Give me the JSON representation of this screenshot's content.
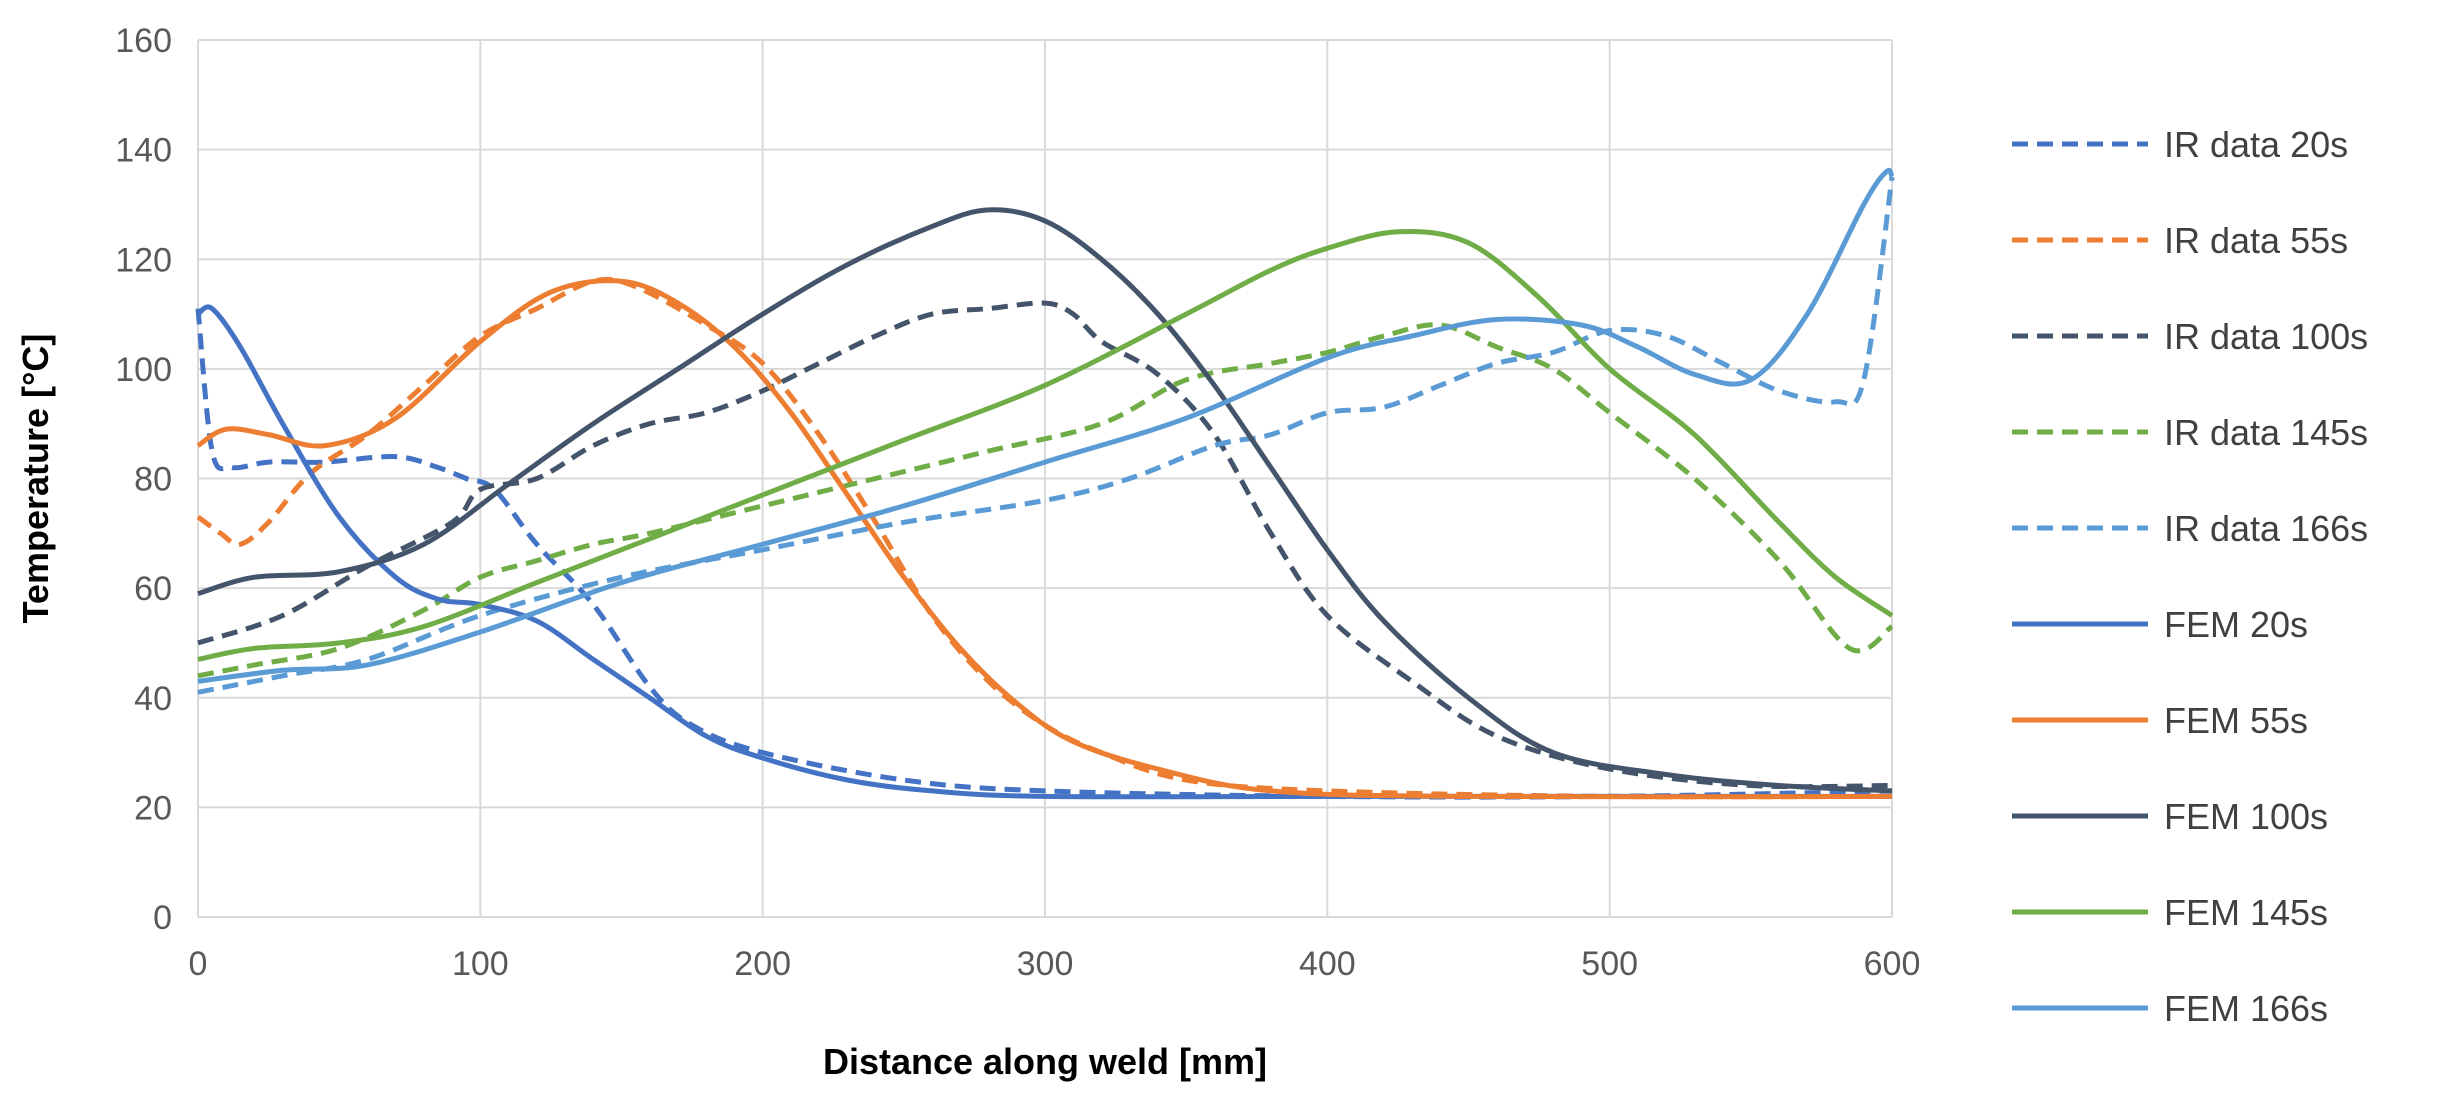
{
  "chart_data": {
    "type": "line",
    "title": "",
    "xlabel": "Distance along weld [mm]",
    "ylabel": "Temperature [°C]",
    "xlim": [
      0,
      600
    ],
    "ylim": [
      0,
      160
    ],
    "xticks": [
      0,
      100,
      200,
      300,
      400,
      500,
      600
    ],
    "yticks": [
      0,
      20,
      40,
      60,
      80,
      100,
      120,
      140,
      160
    ],
    "grid": true,
    "legend_position": "right",
    "series": [
      {
        "name": "IR data 20s",
        "color": "#4472C4",
        "dash": true,
        "x": [
          0,
          5,
          12,
          25,
          45,
          70,
          85,
          95,
          105,
          120,
          140,
          160,
          175,
          200,
          250,
          300,
          400,
          500,
          600
        ],
        "y": [
          111,
          85,
          82,
          83,
          83,
          84,
          82,
          80,
          78,
          68,
          57,
          42,
          35,
          30,
          25,
          23,
          22,
          22,
          23
        ]
      },
      {
        "name": "IR data 55s",
        "color": "#ED7D31",
        "dash": true,
        "x": [
          0,
          8,
          15,
          25,
          40,
          60,
          80,
          100,
          120,
          140,
          155,
          180,
          200,
          220,
          240,
          260,
          280,
          300,
          320,
          350,
          400,
          500,
          600
        ],
        "y": [
          73,
          70,
          68,
          72,
          81,
          88,
          97,
          106,
          111,
          116,
          115,
          108,
          101,
          88,
          72,
          55,
          43,
          35,
          30,
          25,
          23,
          22,
          22
        ]
      },
      {
        "name": "IR data 100s",
        "color": "#44546A",
        "dash": true,
        "x": [
          0,
          30,
          60,
          90,
          100,
          120,
          140,
          160,
          180,
          200,
          220,
          240,
          260,
          280,
          300,
          310,
          320,
          340,
          360,
          380,
          400,
          430,
          460,
          500,
          550,
          600
        ],
        "y": [
          50,
          55,
          64,
          72,
          78,
          80,
          86,
          90,
          92,
          96,
          101,
          106,
          110,
          111,
          112,
          110,
          105,
          99,
          88,
          70,
          55,
          43,
          33,
          27,
          24,
          24
        ]
      },
      {
        "name": "IR data 145s",
        "color": "#70AD47",
        "dash": true,
        "x": [
          0,
          20,
          50,
          80,
          100,
          120,
          140,
          160,
          200,
          240,
          280,
          320,
          350,
          380,
          400,
          420,
          440,
          460,
          480,
          500,
          530,
          560,
          585,
          600
        ],
        "y": [
          44,
          46,
          49,
          56,
          62,
          65,
          68,
          70,
          75,
          80,
          85,
          90,
          98,
          101,
          103,
          106,
          108,
          104,
          100,
          92,
          80,
          65,
          49,
          53
        ]
      },
      {
        "name": "IR data 166s",
        "color": "#5B9BD5",
        "dash": true,
        "x": [
          0,
          30,
          60,
          100,
          150,
          200,
          250,
          300,
          330,
          360,
          380,
          400,
          420,
          440,
          460,
          480,
          500,
          520,
          540,
          560,
          580,
          590,
          600
        ],
        "y": [
          41,
          44,
          47,
          55,
          62,
          67,
          72,
          76,
          80,
          86,
          88,
          92,
          93,
          97,
          101,
          103,
          107,
          106,
          101,
          96,
          94,
          98,
          135
        ]
      },
      {
        "name": "FEM 20s",
        "color": "#4472C4",
        "dash": false,
        "x": [
          0,
          5,
          15,
          30,
          50,
          70,
          85,
          100,
          120,
          140,
          160,
          180,
          200,
          230,
          260,
          300,
          400,
          500,
          600
        ],
        "y": [
          110,
          111,
          104,
          90,
          73,
          62,
          58,
          57,
          54,
          47,
          40,
          33,
          29,
          25,
          23,
          22,
          22,
          22,
          22
        ]
      },
      {
        "name": "FEM 55s",
        "color": "#ED7D31",
        "dash": false,
        "x": [
          0,
          10,
          25,
          45,
          70,
          100,
          125,
          150,
          170,
          190,
          210,
          230,
          250,
          270,
          290,
          310,
          340,
          380,
          450,
          600
        ],
        "y": [
          86,
          89,
          88,
          86,
          91,
          105,
          114,
          116,
          112,
          104,
          92,
          77,
          62,
          49,
          39,
          32,
          27,
          23,
          22,
          22
        ]
      },
      {
        "name": "FEM 100s",
        "color": "#44546A",
        "dash": false,
        "x": [
          0,
          20,
          50,
          80,
          110,
          140,
          170,
          200,
          230,
          260,
          280,
          300,
          320,
          340,
          360,
          380,
          400,
          420,
          450,
          480,
          520,
          560,
          600
        ],
        "y": [
          59,
          62,
          63,
          68,
          79,
          90,
          100,
          110,
          119,
          126,
          129,
          127,
          120,
          110,
          97,
          82,
          67,
          54,
          40,
          30,
          26,
          24,
          23
        ]
      },
      {
        "name": "FEM 145s",
        "color": "#70AD47",
        "dash": false,
        "x": [
          0,
          20,
          50,
          80,
          120,
          160,
          200,
          250,
          300,
          350,
          380,
          400,
          425,
          450,
          475,
          500,
          530,
          560,
          580,
          600
        ],
        "y": [
          47,
          49,
          50,
          53,
          61,
          69,
          77,
          87,
          97,
          110,
          118,
          122,
          125,
          123,
          113,
          100,
          88,
          72,
          62,
          55
        ]
      },
      {
        "name": "FEM 166s",
        "color": "#5B9BD5",
        "dash": false,
        "x": [
          0,
          30,
          60,
          100,
          150,
          200,
          250,
          300,
          350,
          400,
          430,
          460,
          490,
          510,
          530,
          550,
          570,
          590,
          598,
          600
        ],
        "y": [
          43,
          45,
          46,
          52,
          61,
          68,
          75,
          83,
          91,
          102,
          106,
          109,
          108,
          104,
          99,
          98,
          110,
          130,
          136,
          135
        ]
      }
    ]
  }
}
